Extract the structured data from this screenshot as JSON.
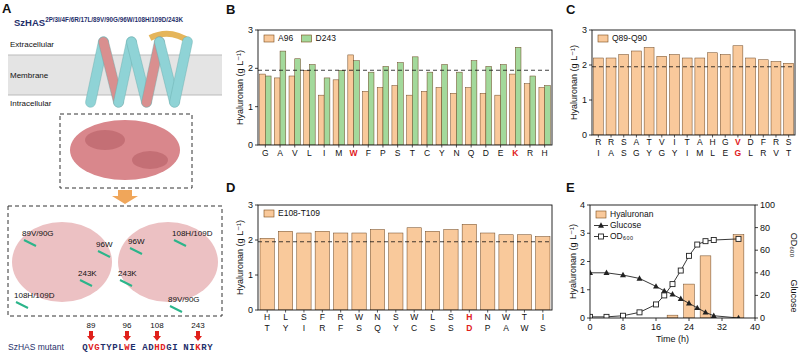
{
  "panel_a": {
    "label": "A",
    "title": "SzHAS",
    "title_superscript": "2P/3I/4F/6R/17L/89V/90G/96W/108H/109D/243K",
    "regions": [
      "Extracellular",
      "Membrane",
      "Intracellular"
    ],
    "zoom_labels": [
      "89V/90G",
      "96W",
      "108H/109D",
      "243K"
    ],
    "sequence_label": "SzHAS mutant",
    "segments": [
      {
        "text": "QVGTYPLWE",
        "mutated": [
          1,
          2,
          7
        ]
      },
      {
        "text": "ADHDGI",
        "mutated": [
          2,
          3
        ]
      },
      {
        "text": "NIKRY",
        "mutated": [
          2
        ]
      }
    ],
    "sites": [
      {
        "number": 89,
        "segment": 0,
        "letter": 1
      },
      {
        "number": 96,
        "segment": 0,
        "letter": 7
      },
      {
        "number": 108,
        "segment": 1,
        "letter": 2
      },
      {
        "number": 243,
        "segment": 2,
        "letter": 2
      }
    ]
  },
  "chart_data": [
    {
      "type": "bar",
      "title": "B",
      "ylabel": "Hyaluronan (g L⁻¹)",
      "categories": [
        "G",
        "A",
        "V",
        "L",
        "I",
        "M",
        "W",
        "F",
        "P",
        "S",
        "T",
        "C",
        "Y",
        "N",
        "Q",
        "D",
        "E",
        "K",
        "R",
        "H"
      ],
      "highlight": [
        6,
        17
      ],
      "series": [
        {
          "name": "A96",
          "color": "#f9c99b",
          "values": [
            1.85,
            1.75,
            1.8,
            1.95,
            1.3,
            1.7,
            2.35,
            1.4,
            1.5,
            1.55,
            1.3,
            1.4,
            1.5,
            1.35,
            1.5,
            1.35,
            1.3,
            1.85,
            1.6,
            1.5
          ]
        },
        {
          "name": "D243",
          "color": "#a3d99b",
          "values": [
            1.8,
            2.45,
            2.25,
            2.1,
            1.75,
            1.95,
            2.2,
            1.9,
            2.05,
            2.15,
            2.3,
            1.9,
            2.1,
            1.9,
            2.2,
            2.05,
            2.1,
            2.55,
            1.8,
            1.55
          ]
        }
      ],
      "ylim": [
        0,
        3
      ],
      "yticks": [
        0,
        1,
        2,
        3
      ],
      "baseline": 1.95,
      "legend": "top-left"
    },
    {
      "type": "bar",
      "title": "C",
      "ylabel": "Hyaluronan (g L⁻¹)",
      "categories": [
        [
          "R",
          "I"
        ],
        [
          "R",
          "A"
        ],
        [
          "S",
          "S"
        ],
        [
          "A",
          "G"
        ],
        [
          "T",
          "Y"
        ],
        [
          "V",
          "G"
        ],
        [
          "I",
          "Y"
        ],
        [
          "T",
          "I"
        ],
        [
          "A",
          "M"
        ],
        [
          "H",
          "L"
        ],
        [
          "G",
          "E"
        ],
        [
          "V",
          "G"
        ],
        [
          "D",
          "L"
        ],
        [
          "F",
          "R"
        ],
        [
          "R",
          "V"
        ],
        [
          "S",
          "T"
        ]
      ],
      "highlight": [
        11
      ],
      "series": [
        {
          "name": "Q89-Q90",
          "color": "#f9c99b",
          "values": [
            2.2,
            2.2,
            2.3,
            2.4,
            2.5,
            2.25,
            2.3,
            2.2,
            2.2,
            2.35,
            2.3,
            2.55,
            2.2,
            2.15,
            2.1,
            2.05
          ]
        }
      ],
      "ylim": [
        0,
        3
      ],
      "yticks": [
        0,
        1,
        2,
        3
      ],
      "baseline": 1.95,
      "legend": "top-left"
    },
    {
      "type": "bar",
      "title": "D",
      "ylabel": "Hyaluronan (g L⁻¹)",
      "categories": [
        [
          "H",
          "T"
        ],
        [
          "L",
          "Y"
        ],
        [
          "S",
          "I"
        ],
        [
          "F",
          "R"
        ],
        [
          "R",
          "F"
        ],
        [
          "W",
          "S"
        ],
        [
          "N",
          "Q"
        ],
        [
          "S",
          "Y"
        ],
        [
          "W",
          "C"
        ],
        [
          "L",
          "S"
        ],
        [
          "S",
          "S"
        ],
        [
          "H",
          "D"
        ],
        [
          "N",
          "P"
        ],
        [
          "W",
          "A"
        ],
        [
          "T",
          "W"
        ],
        [
          "I",
          "S"
        ]
      ],
      "highlight": [
        11
      ],
      "series": [
        {
          "name": "E108-T109",
          "color": "#f9c99b",
          "values": [
            2.05,
            2.25,
            2.2,
            2.25,
            2.2,
            2.2,
            2.3,
            2.2,
            2.35,
            2.25,
            2.3,
            2.45,
            2.2,
            2.15,
            2.15,
            2.1
          ]
        }
      ],
      "ylim": [
        0,
        3
      ],
      "yticks": [
        0,
        1,
        2,
        3
      ],
      "baseline": 1.95,
      "legend": "top-left"
    },
    {
      "type": "combo",
      "title": "E",
      "xlabel": "Time (h)",
      "ylabel": "Hyaluronan (g L⁻¹)",
      "y2label": [
        "OD₆₀₀",
        "Glucose"
      ],
      "xlim": [
        0,
        40
      ],
      "xticks": [
        0,
        8,
        16,
        24,
        32,
        40
      ],
      "ylim": [
        0,
        4
      ],
      "yticks": [
        0,
        1,
        2,
        3,
        4
      ],
      "y2lim": [
        0,
        100
      ],
      "y2ticks": [
        0,
        20,
        40,
        60,
        80,
        100
      ],
      "series": [
        {
          "name": "Hyaluronan",
          "type": "bar",
          "color": "#f9c99b",
          "x": [
            20,
            24,
            28,
            36
          ],
          "values": [
            0.1,
            1.2,
            2.2,
            2.95
          ]
        },
        {
          "name": "Glucose",
          "type": "line",
          "axis": "y2",
          "marker": "triangle",
          "color": "#222222",
          "x": [
            0,
            4,
            8,
            12,
            16,
            18,
            20,
            22,
            24,
            26,
            28,
            30,
            36
          ],
          "values": [
            40,
            40,
            38,
            35,
            28,
            24,
            21,
            17,
            13,
            9,
            5,
            2,
            0
          ]
        },
        {
          "name": "OD₆₀₀",
          "type": "line",
          "axis": "y2",
          "marker": "square",
          "color": "#222222",
          "x": [
            0,
            4,
            8,
            12,
            16,
            18,
            20,
            22,
            24,
            26,
            28,
            30,
            36
          ],
          "values": [
            1,
            1,
            2,
            5,
            12,
            20,
            30,
            42,
            55,
            65,
            68,
            69,
            70
          ]
        }
      ],
      "legend": "top-left"
    }
  ]
}
